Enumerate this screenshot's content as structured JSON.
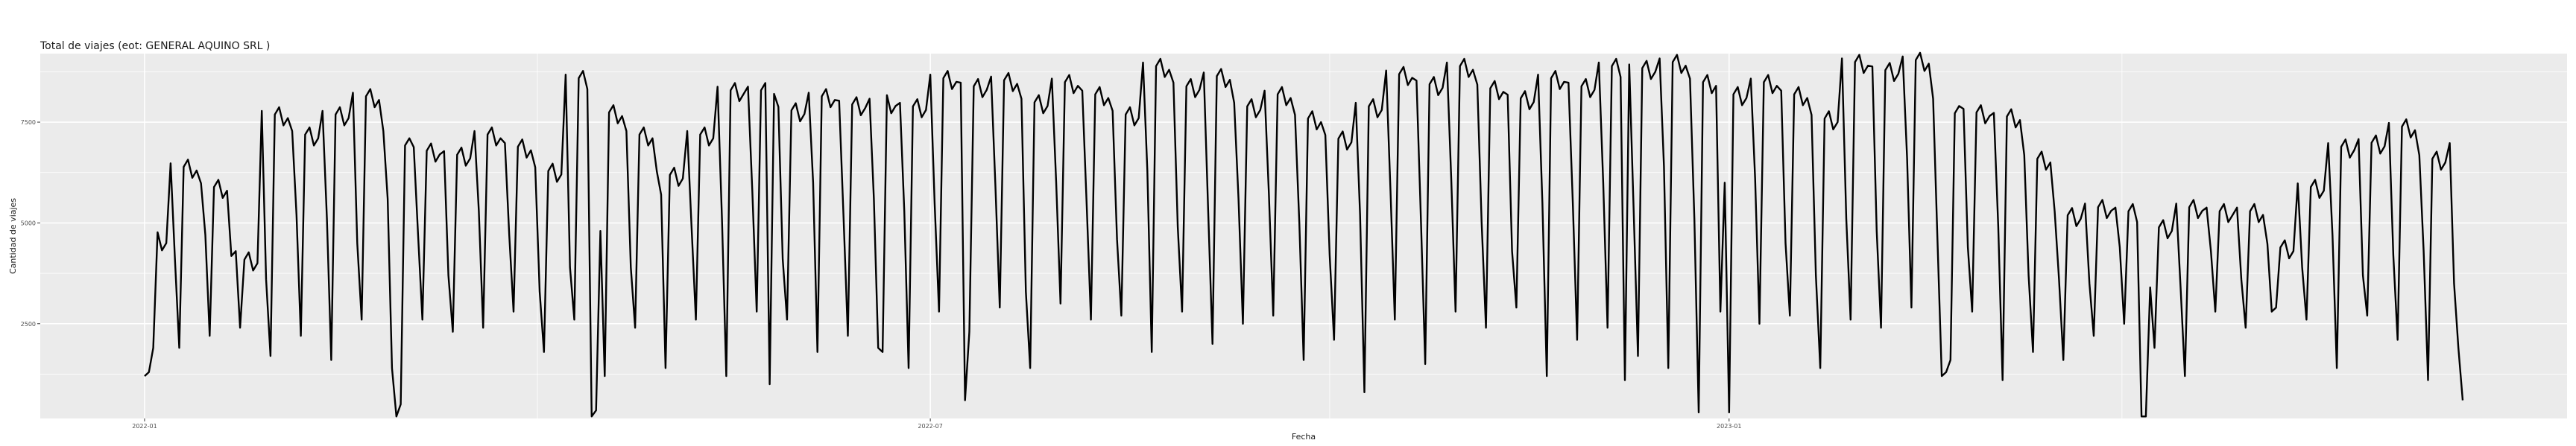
{
  "chart_data": {
    "type": "line",
    "title": "Total de viajes (eot: GENERAL AQUINO SRL )",
    "xlabel": "Fecha",
    "ylabel": "Cantidad de viajes",
    "x_start": "2022-01-01",
    "x_end": "2023-06-19",
    "x_ticks": [
      {
        "label": "2022-01",
        "date": "2022-01-01"
      },
      {
        "label": "2022-07",
        "date": "2022-07-01"
      },
      {
        "label": "2023-01",
        "date": "2023-01-01"
      }
    ],
    "y_ticks": [
      2500,
      5000,
      7500
    ],
    "ylim": [
      150,
      9200
    ],
    "grid": true,
    "line_color": "#000000",
    "panel_color": "#ebebeb",
    "grid_color": "#ffffff",
    "weekly_pattern": {
      "weekday_level": [
        4500,
        6300,
        5800,
        4000,
        7600,
        7100,
        7600,
        8050,
        7100,
        6700,
        6600,
        7100,
        6800,
        6200,
        8500,
        7650,
        7100,
        6100,
        7100,
        8200,
        8200,
        7700,
        8050,
        7850,
        7900,
        7800,
        8500,
        8300,
        8450,
        7900,
        8400,
        8100,
        7600,
        8800,
        8300,
        8550,
        7800,
        8100,
        7500,
        7000,
        7800,
        8600,
        8350,
        8800,
        8250,
        8000,
        8500,
        8300,
        8800,
        8750,
        8900,
        8400,
        8100,
        8400,
        8100,
        7500,
        8900,
        8700,
        8950,
        7900,
        7650,
        7550,
        6500,
        5100,
        5300,
        5200,
        4800,
        5300,
        5200,
        5200,
        4300,
        5800,
        6800,
        6900,
        7300,
        6500,
        6800,
        7300,
        7600,
        8100,
        8500
      ],
      "saturday": [
        4400,
        4100,
        4700,
        4300,
        3600,
        5200,
        5100,
        4500,
        5600,
        4700,
        3700,
        5300,
        4700,
        3300,
        3900,
        4800,
        3900,
        5700,
        4900,
        5100,
        5800,
        4100,
        6000,
        5200,
        5600,
        5300,
        5500,
        4800,
        5900,
        3300,
        6000,
        5500,
        4600,
        6300,
        4900,
        5300,
        5600,
        5700,
        5000,
        4200,
        5200,
        5800,
        5100,
        6100,
        5000,
        4300,
        5500,
        5500,
        6000,
        5400,
        6400,
        5100,
        6000,
        6100,
        4500,
        3700,
        5100,
        4800,
        6600,
        4600,
        4400,
        4900,
        3700,
        3600,
        3500,
        4400,
        3400,
        3400,
        4300,
        3600,
        2800,
        3900,
        4700,
        3700,
        4200,
        4300,
        3500,
        4600,
        4500,
        3200,
        4500
      ],
      "sunday": [
        1900,
        1900,
        2200,
        2400,
        1700,
        2200,
        1600,
        2600,
        1400,
        2600,
        2300,
        2400,
        2800,
        1800,
        2600,
        1200,
        2400,
        2900,
        2600,
        1200,
        2800,
        2600,
        1800,
        2200,
        1900,
        1400,
        2800,
        2300,
        2900,
        1400,
        3000,
        2600,
        2700,
        1800,
        2800,
        2000,
        2500,
        2700,
        1600,
        2100,
        2800,
        2600,
        1500,
        2800,
        2400,
        2900,
        2600,
        2100,
        2400,
        1700,
        1400,
        2800,
        1900,
        2500,
        2700,
        1400,
        2600,
        2400,
        2900,
        1200,
        2800,
        1100,
        1800,
        1600,
        2200,
        2500,
        1900,
        1200,
        2800,
        2400,
        2900,
        2600,
        1400,
        2700,
        2100,
        1100,
        1900,
        2200,
        2900,
        2400,
        1600
      ]
    },
    "notable_points": [
      {
        "x": "2022-01-01",
        "y": 1200
      },
      {
        "x": "2022-01-02",
        "y": 1300
      },
      {
        "x": "2022-01-03",
        "y": 1900
      },
      {
        "x": "2022-02-28",
        "y": 200
      },
      {
        "x": "2022-03-01",
        "y": 500
      },
      {
        "x": "2022-04-14",
        "y": 200
      },
      {
        "x": "2022-04-15",
        "y": 350
      },
      {
        "x": "2022-05-01",
        "y": 1400
      },
      {
        "x": "2022-05-25",
        "y": 1000
      },
      {
        "x": "2022-06-20",
        "y": 1800
      },
      {
        "x": "2022-07-09",
        "y": 600
      },
      {
        "x": "2022-10-09",
        "y": 800
      },
      {
        "x": "2022-11-20",
        "y": 1200
      },
      {
        "x": "2022-12-08",
        "y": 1100
      },
      {
        "x": "2022-12-25",
        "y": 300
      },
      {
        "x": "2022-12-30",
        "y": 2800
      },
      {
        "x": "2023-01-01",
        "y": 300
      },
      {
        "x": "2023-02-20",
        "y": 1300
      },
      {
        "x": "2023-02-21",
        "y": 1600
      },
      {
        "x": "2023-04-06",
        "y": 200
      },
      {
        "x": "2023-04-07",
        "y": 200
      },
      {
        "x": "2023-06-19",
        "y": 600
      }
    ]
  }
}
